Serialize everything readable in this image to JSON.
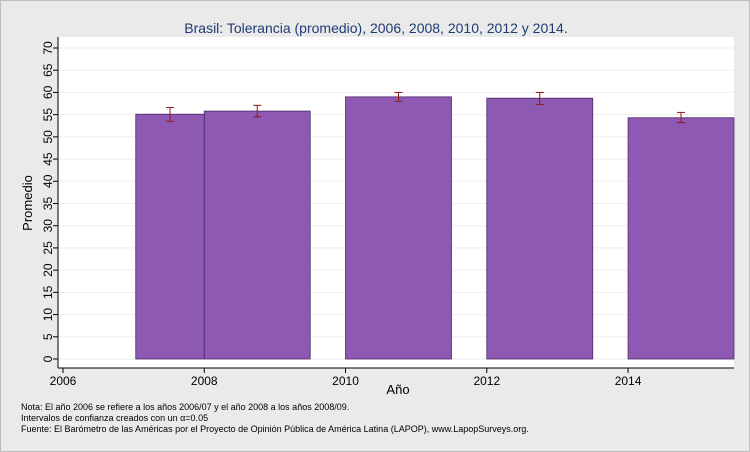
{
  "chart_data": {
    "type": "bar",
    "title": "Brasil: Tolerancia (promedio), 2006, 2008, 2010, 2012 y 2014.",
    "xlabel": "Año",
    "ylabel": "Promedio",
    "x_ticks": [
      "2006",
      "2008",
      "2010",
      "2012",
      "2014"
    ],
    "categories": [
      "2006",
      "2008",
      "2010",
      "2012",
      "2014"
    ],
    "values": [
      55.1,
      55.8,
      59.0,
      58.7,
      54.3
    ],
    "ci_low": [
      53.5,
      54.5,
      58.0,
      57.3,
      53.2
    ],
    "ci_high": [
      56.6,
      57.1,
      60.0,
      60.0,
      55.5
    ],
    "ylim": [
      0,
      70
    ],
    "y_ticks": [
      0,
      5,
      10,
      15,
      20,
      25,
      30,
      35,
      40,
      45,
      50,
      55,
      60,
      65,
      70
    ],
    "xlim": [
      2006,
      2015.5
    ],
    "bar_starts": [
      2007.03,
      2008.0,
      2010.0,
      2012.0,
      2014.0
    ],
    "bar_ends": [
      2008.0,
      2009.5,
      2011.5,
      2013.5,
      2015.5
    ],
    "grid": true,
    "bar_color": "#8e59b3",
    "bar_edge_color": "#4a2a66",
    "errorbar_color": "#8b1a1a"
  },
  "notes": [
    "Nota: El año 2006 se refiere a los años 2006/07 y el año 2008 a los años 2008/09.",
    "Intervalos de confianza creados con un α=0.05",
    "Fuente: El Barómetro de las Américas por el Proyecto de Opinión Pública de América Latina (LAPOP), www.LapopSurveys.org."
  ]
}
